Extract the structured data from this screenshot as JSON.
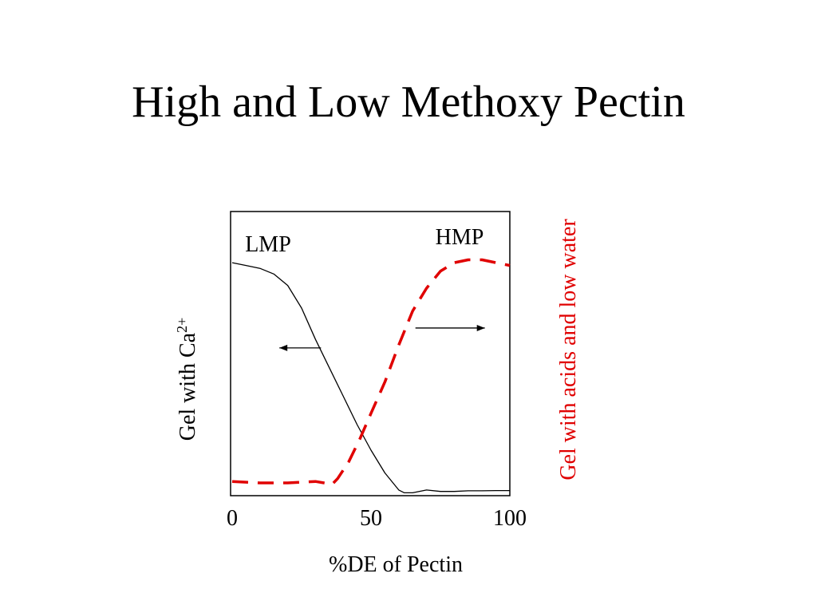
{
  "slide": {
    "title": "High and Low Methoxy Pectin"
  },
  "chart_data": {
    "type": "line",
    "xlabel": "%DE of Pectin",
    "ylabel_left": "Gel with Ca",
    "ylabel_left_superscript": "2+",
    "ylabel_right": "Gel with acids and low water",
    "x_ticks": [
      "0",
      "50",
      "100"
    ],
    "xlim": [
      0,
      100
    ],
    "ylim": [
      0,
      1
    ],
    "annotations": [
      "LMP",
      "HMP"
    ],
    "colors": {
      "lmp": "#000000",
      "hmp": "#e00000",
      "ylabel_right": "#e00000"
    },
    "series": [
      {
        "key": "lmp",
        "style": "solid",
        "x": [
          0,
          5,
          10,
          15,
          20,
          25,
          30,
          35,
          40,
          45,
          50,
          55,
          60,
          62,
          65,
          70,
          75,
          80,
          85,
          90,
          95,
          100
        ],
        "y": [
          0.82,
          0.81,
          0.8,
          0.78,
          0.74,
          0.66,
          0.55,
          0.45,
          0.35,
          0.25,
          0.16,
          0.08,
          0.02,
          0.01,
          0.01,
          0.02,
          0.015,
          0.015,
          0.017,
          0.017,
          0.018,
          0.018
        ]
      },
      {
        "key": "hmp",
        "style": "dashed",
        "x": [
          0,
          10,
          20,
          30,
          36,
          38,
          42,
          46,
          50,
          55,
          60,
          65,
          70,
          75,
          80,
          85,
          90,
          95,
          100
        ],
        "y": [
          0.05,
          0.045,
          0.045,
          0.05,
          0.04,
          0.06,
          0.12,
          0.2,
          0.29,
          0.4,
          0.53,
          0.65,
          0.73,
          0.79,
          0.82,
          0.83,
          0.83,
          0.82,
          0.81
        ]
      }
    ],
    "arrows": [
      {
        "from_x": 32,
        "to_x": 17,
        "y": 0.52
      },
      {
        "from_x": 66,
        "to_x": 91,
        "y": 0.59
      }
    ]
  }
}
